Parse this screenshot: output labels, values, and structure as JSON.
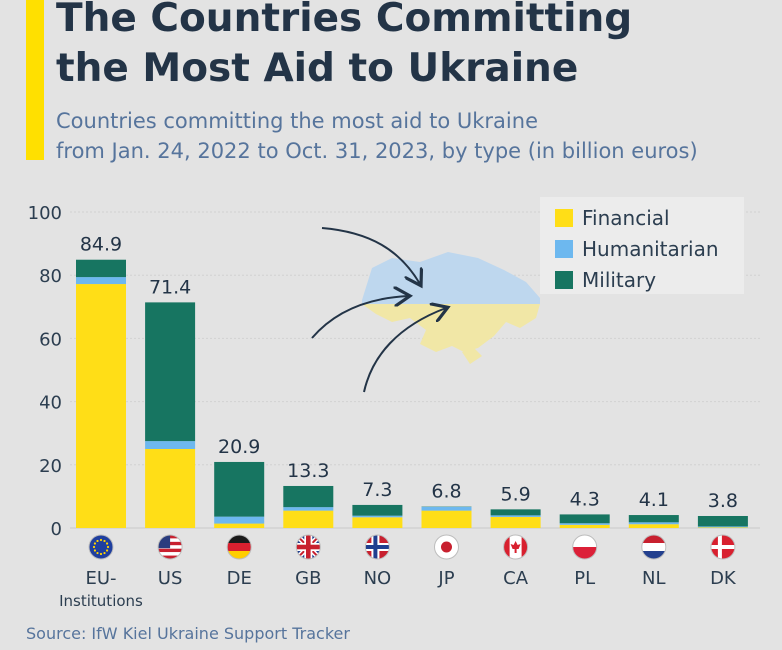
{
  "header": {
    "title_line1": "The Countries Committing",
    "title_line2": "the Most Aid to Ukraine",
    "subtitle_line1": "Countries committing the most aid to Ukraine",
    "subtitle_line2": "from Jan. 24, 2022 to Oct. 31, 2023, by type (in billion euros)"
  },
  "source": "Source: IfW Kiel Ukraine Support Tracker",
  "colors": {
    "financial": "#ffde17",
    "humanitarian": "#6db8ef",
    "military": "#177561",
    "accent": "#ffe000",
    "title": "#233447",
    "muted": "#56749c"
  },
  "chart_data": {
    "type": "bar",
    "stacked": true,
    "categories": [
      "EU-Institutions",
      "US",
      "DE",
      "GB",
      "NO",
      "JP",
      "CA",
      "PL",
      "NL",
      "DK"
    ],
    "category_labels": [
      [
        "EU-",
        "Institutions"
      ],
      [
        "US"
      ],
      [
        "DE"
      ],
      [
        "GB"
      ],
      [
        "NO"
      ],
      [
        "JP"
      ],
      [
        "CA"
      ],
      [
        "PL"
      ],
      [
        "NL"
      ],
      [
        "DK"
      ]
    ],
    "totals": [
      84.9,
      71.4,
      20.9,
      13.3,
      7.3,
      6.8,
      5.9,
      4.3,
      4.1,
      3.8
    ],
    "total_labels": [
      "84.9",
      "71.4",
      "20.9",
      "13.3",
      "7.3",
      "6.8",
      "5.9",
      "4.3",
      "4.1",
      "3.8"
    ],
    "series": [
      {
        "name": "Financial",
        "values": [
          77.2,
          25.0,
          1.4,
          5.5,
          3.4,
          5.5,
          3.5,
          1.0,
          1.2,
          0.2
        ]
      },
      {
        "name": "Humanitarian",
        "values": [
          2.2,
          2.5,
          2.2,
          1.1,
          0.5,
          1.2,
          0.5,
          0.5,
          0.6,
          0.3
        ]
      },
      {
        "name": "Military",
        "values": [
          5.5,
          43.9,
          17.3,
          6.7,
          3.4,
          0.1,
          1.9,
          2.8,
          2.3,
          3.3
        ]
      }
    ],
    "ylim": [
      0,
      100
    ],
    "yticks": [
      0,
      20,
      40,
      60,
      80,
      100
    ],
    "legend_position": "top-right",
    "grid": true,
    "flag_icons": [
      "eu-flag-icon",
      "us-flag-icon",
      "de-flag-icon",
      "gb-flag-icon",
      "no-flag-icon",
      "jp-flag-icon",
      "ca-flag-icon",
      "pl-flag-icon",
      "nl-flag-icon",
      "dk-flag-icon"
    ]
  }
}
